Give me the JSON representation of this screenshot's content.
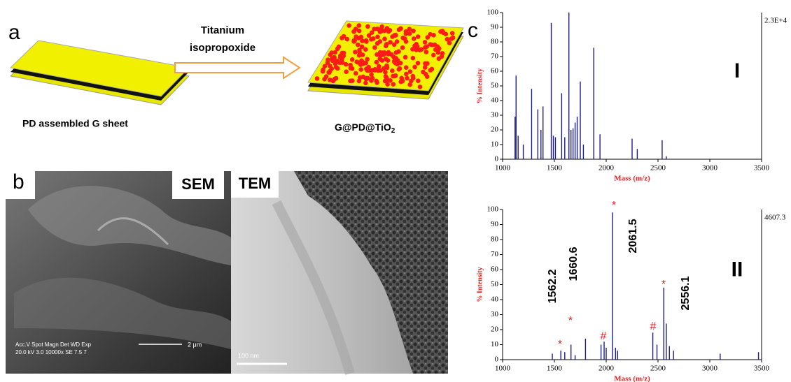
{
  "panels": {
    "a": {
      "label": "a",
      "reagent": [
        "Titanium",
        "isopropoxide"
      ],
      "left_caption": "PD assembled  G sheet",
      "right_caption": {
        "text": "G@PD@TiO",
        "subscript": "2"
      }
    },
    "b": {
      "label": "b",
      "sem_label": "SEM",
      "tem_label": "TEM",
      "sem_info": [
        "Acc.V  Spot Magn    Det  WD  Exp",
        "20.0 kV 3.0  10000x  SE  7.5  7"
      ],
      "sem_scale": "2 μm",
      "tem_scale": "100 nm"
    },
    "c": {
      "label": "c"
    }
  },
  "chart_data": [
    {
      "type": "spectrum",
      "panel_label": "I",
      "max_label": "2.3E+4",
      "xlabel": "Mass (m/z)",
      "ylabel": "% Intensity",
      "x": [
        1120,
        1130,
        1150,
        1200,
        1280,
        1340,
        1370,
        1390,
        1470,
        1490,
        1510,
        1570,
        1600,
        1640,
        1660,
        1680,
        1700,
        1720,
        1750,
        1780,
        1880,
        1940,
        2250,
        2300,
        2540,
        2580
      ],
      "series": [
        {
          "name": "I",
          "color": "#1c1c8f",
          "values": [
            29,
            57,
            16,
            10,
            48,
            34,
            20,
            36,
            93,
            16,
            15,
            45,
            15,
            100,
            20,
            21,
            25,
            29,
            53,
            10,
            76,
            17,
            14,
            7,
            13,
            2
          ]
        }
      ],
      "xlim": [
        1000,
        3500
      ],
      "ylim": [
        0,
        100
      ],
      "xticks": [
        1000,
        1500,
        2000,
        2500,
        3000,
        3500
      ],
      "yticks": [
        0,
        10,
        20,
        30,
        40,
        50,
        60,
        70,
        80,
        90,
        100
      ]
    },
    {
      "type": "spectrum",
      "panel_label": "II",
      "max_label": "4607.3",
      "xlabel": "Mass (m/z)",
      "ylabel": "% Intensity",
      "x": [
        1480,
        1562,
        1600,
        1660,
        1700,
        1800,
        1950,
        1980,
        2000,
        2061,
        2090,
        2110,
        2450,
        2490,
        2556,
        2580,
        2610,
        2650,
        3100,
        3470
      ],
      "series": [
        {
          "name": "II",
          "color": "#1c1c8f",
          "values": [
            4,
            6,
            5,
            10,
            3,
            14,
            10,
            12,
            8,
            98,
            8,
            6,
            18,
            10,
            48,
            24,
            9,
            6,
            4,
            5
          ]
        }
      ],
      "annotations": [
        "2061.5",
        "2556.1",
        "1562.2",
        "1660.6"
      ],
      "peak_marks": [
        "*",
        "*",
        "*",
        "*",
        "#",
        "#"
      ],
      "xlim": [
        1000,
        3500
      ],
      "ylim": [
        0,
        100
      ],
      "xticks": [
        1000,
        1500,
        2000,
        2500,
        3000,
        3500
      ],
      "yticks": [
        0,
        10,
        20,
        30,
        40,
        50,
        60,
        70,
        80,
        90,
        100
      ]
    }
  ]
}
